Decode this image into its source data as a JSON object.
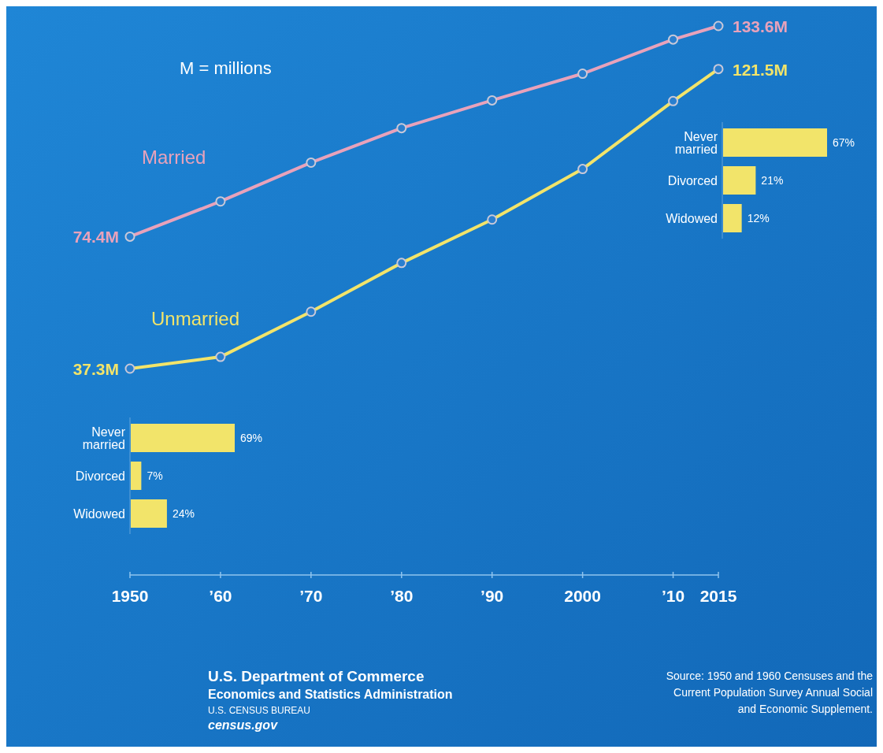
{
  "chart_data": [
    {
      "type": "line",
      "x": [
        1950,
        1960,
        1970,
        1980,
        1990,
        2000,
        2010,
        2015
      ],
      "xlim": [
        1950,
        2015
      ],
      "xticks": [
        1950,
        {
          "value": 1960,
          "label": "’60"
        },
        {
          "value": 1970,
          "label": "’70"
        },
        {
          "value": 1980,
          "label": "’80"
        },
        {
          "value": 1990,
          "label": "’90"
        },
        2000,
        {
          "value": 2010,
          "label": "’10"
        },
        2015
      ],
      "marker": "circle",
      "legend": false,
      "grid": false,
      "series": [
        {
          "name": "Married",
          "color": "#e8a2bb",
          "values": [
            74.4,
            84.3,
            95.2,
            104.9,
            112.7,
            120.2,
            129.8,
            133.6
          ],
          "value_labels": [
            "74.4M",
            null,
            null,
            null,
            null,
            null,
            null,
            "133.6M"
          ]
        },
        {
          "name": "Unmarried",
          "color": "#f2e46a",
          "values": [
            37.3,
            40.6,
            53.3,
            67.0,
            79.2,
            93.4,
            112.5,
            121.5
          ],
          "value_labels": [
            "37.3M",
            null,
            null,
            null,
            null,
            null,
            null,
            "121.5M"
          ]
        }
      ],
      "annotations": [
        "M = millions",
        "U.S. Department of Commerce",
        "Economics and Statistics Administration",
        "U.S. CENSUS BUREAU",
        "census.gov",
        "Source: 1950 and 1960 Censuses and the Current Population Survey Annual Social and Economic Supplement."
      ]
    },
    {
      "type": "bar",
      "orientation": "horizontal",
      "categories": [
        "Never married",
        "Divorced",
        "Widowed"
      ],
      "values": [
        69,
        7,
        24
      ],
      "color": "#f2e46a",
      "value_labels": [
        "69%",
        "7%",
        "24%"
      ]
    },
    {
      "type": "bar",
      "orientation": "horizontal",
      "categories": [
        "Never married",
        "Divorced",
        "Widowed"
      ],
      "values": [
        67,
        21,
        12
      ],
      "color": "#f2e46a",
      "value_labels": [
        "67%",
        "21%",
        "12%"
      ]
    }
  ]
}
